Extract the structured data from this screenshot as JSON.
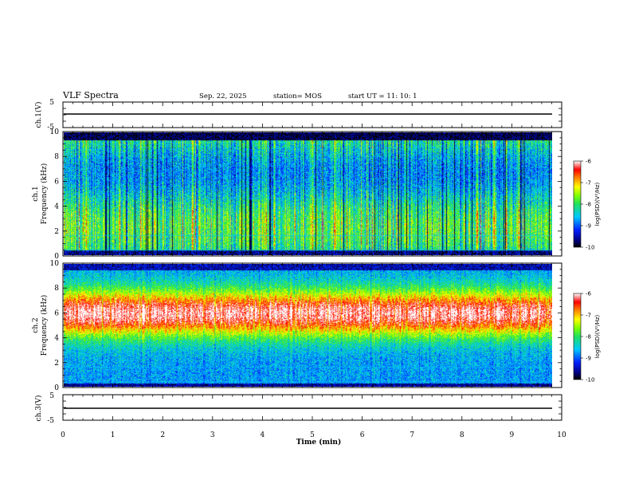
{
  "header": {
    "title": "VLF Spectra",
    "date": "Sep. 22, 2025",
    "station": "station= MOS",
    "start": "start  UT =   11: 10: 1"
  },
  "chart_data": [
    {
      "type": "line",
      "name": "ch1-waveform",
      "ylabel": "ch.1(V)",
      "ylim": [
        -5,
        5
      ],
      "yticks": [
        "5",
        "-5"
      ],
      "level": 0
    },
    {
      "type": "heatmap",
      "name": "ch1-spectrogram",
      "ylabel": "ch.1\nFrequency (kHz)",
      "ylabel_top": "ch.1",
      "ylabel_bottom": "Frequency (kHz)",
      "ylim": [
        0,
        10
      ],
      "yticks": [
        "0",
        "2",
        "4",
        "6",
        "8",
        "10"
      ],
      "xlim": [
        0,
        9.8
      ],
      "colorbar": {
        "label": "log(PSD)(V²/Hz)",
        "range": [
          -10,
          -6
        ],
        "ticks": [
          "-6",
          "-7",
          "-8",
          "-9",
          "-10"
        ]
      },
      "description": "broadband impulsive emissions 0.5-9.5 kHz, strongest 2-9 kHz"
    },
    {
      "type": "heatmap",
      "name": "ch2-spectrogram",
      "ylabel_top": "ch.2",
      "ylabel_bottom": "Frequency (kHz)",
      "ylim": [
        0,
        10
      ],
      "yticks": [
        "0",
        "2",
        "4",
        "6",
        "8",
        "10"
      ],
      "xlim": [
        0,
        9.8
      ],
      "colorbar": {
        "label": "log(PSD)(V²/Hz)",
        "range": [
          -10,
          -6
        ],
        "ticks": [
          "-6",
          "-7",
          "-8",
          "-9",
          "-10"
        ]
      },
      "description": "persistent strong band centered near 6 kHz (4.5-7.5 kHz)"
    },
    {
      "type": "line",
      "name": "ch3-waveform",
      "ylabel": "ch.3(V)",
      "ylim": [
        -5,
        5
      ],
      "yticks": [
        "5",
        "-5"
      ],
      "level": 0
    }
  ],
  "xaxis": {
    "label": "Time  (min)",
    "range": [
      0,
      10
    ],
    "ticks": [
      "0",
      "1",
      "2",
      "3",
      "4",
      "5",
      "6",
      "7",
      "8",
      "9",
      "10"
    ]
  }
}
